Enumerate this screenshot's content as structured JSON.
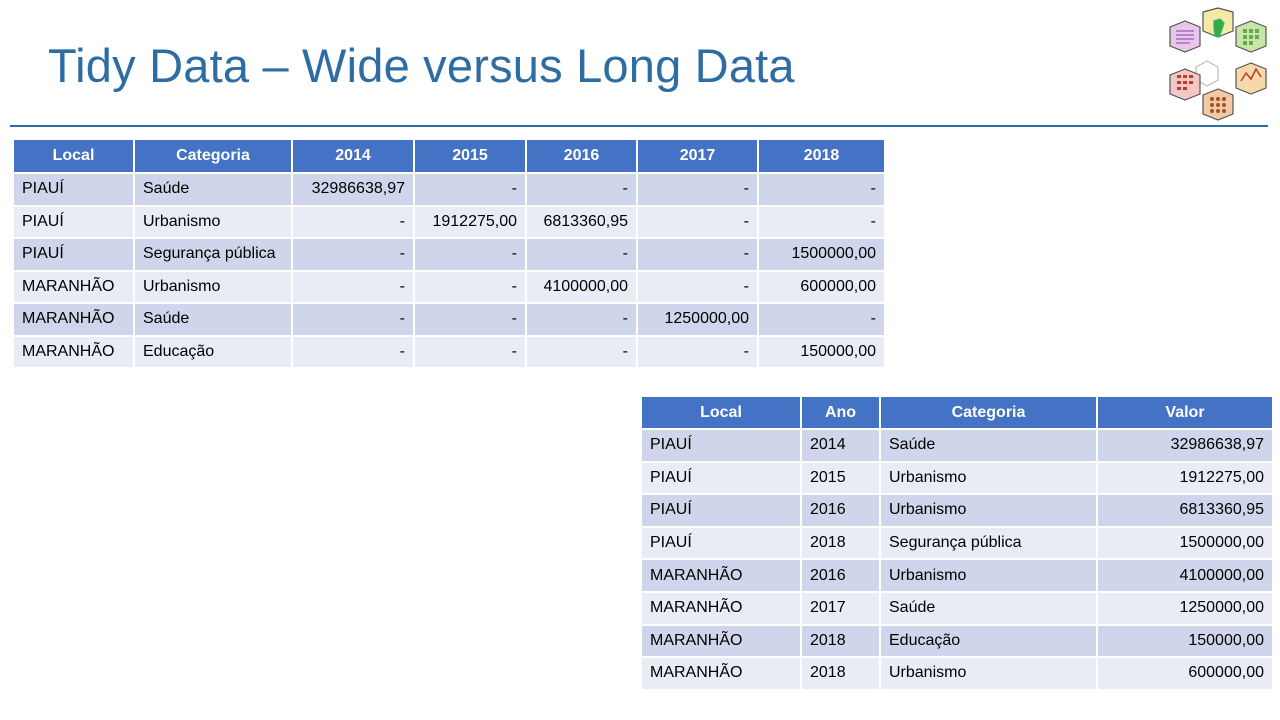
{
  "slide": {
    "title": "Tidy Data – Wide versus Long Data"
  },
  "logo": {
    "icon": "hexagon-data-icons-logo"
  },
  "wide_table": {
    "headers": [
      "Local",
      "Categoria",
      "2014",
      "2015",
      "2016",
      "2017",
      "2018"
    ],
    "rows": [
      [
        "PIAUÍ",
        "Saúde",
        "32986638,97",
        "-",
        "-",
        "-",
        "-"
      ],
      [
        "PIAUÍ",
        "Urbanismo",
        "-",
        "1912275,00",
        "6813360,95",
        "-",
        "-"
      ],
      [
        "PIAUÍ",
        "Segurança pública",
        "-",
        "-",
        "-",
        "-",
        "1500000,00"
      ],
      [
        "MARANHÃO",
        "Urbanismo",
        "-",
        "-",
        "4100000,00",
        "-",
        "600000,00"
      ],
      [
        "MARANHÃO",
        "Saúde",
        "-",
        "-",
        "-",
        "1250000,00",
        "-"
      ],
      [
        "MARANHÃO",
        "Educação",
        "-",
        "-",
        "-",
        "-",
        "150000,00"
      ]
    ]
  },
  "long_table": {
    "headers": [
      "Local",
      "Ano",
      "Categoria",
      "Valor"
    ],
    "rows": [
      [
        "PIAUÍ",
        "2014",
        "Saúde",
        "32986638,97"
      ],
      [
        "PIAUÍ",
        "2015",
        "Urbanismo",
        "1912275,00"
      ],
      [
        "PIAUÍ",
        "2016",
        "Urbanismo",
        "6813360,95"
      ],
      [
        "PIAUÍ",
        "2018",
        "Segurança pública",
        "1500000,00"
      ],
      [
        "MARANHÃO",
        "2016",
        "Urbanismo",
        "4100000,00"
      ],
      [
        "MARANHÃO",
        "2017",
        "Saúde",
        "1250000,00"
      ],
      [
        "MARANHÃO",
        "2018",
        "Educação",
        "150000,00"
      ],
      [
        "MARANHÃO",
        "2018",
        "Urbanismo",
        "600000,00"
      ]
    ]
  },
  "colors": {
    "title": "#2e6da4",
    "header_bg": "#4472c4",
    "row_dark": "#cfd5ea",
    "row_light": "#e9ebf5"
  }
}
